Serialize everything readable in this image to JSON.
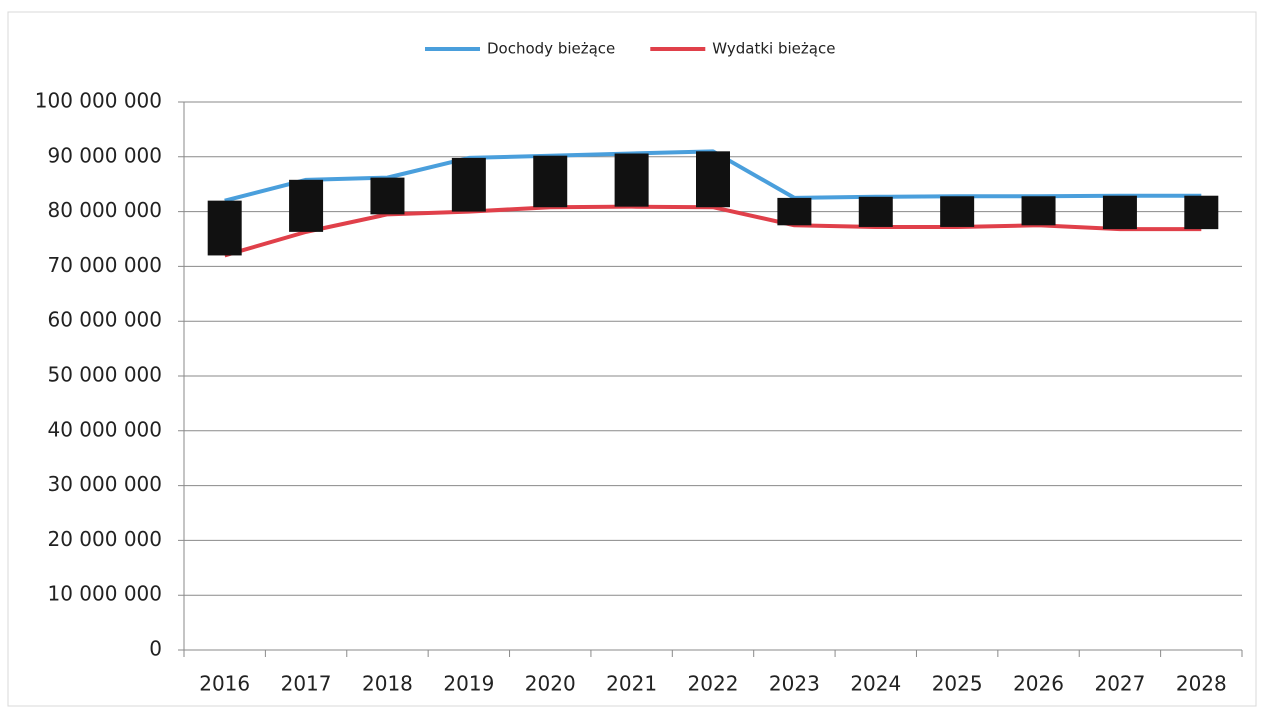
{
  "chart_data": {
    "type": "line",
    "categories": [
      "2016",
      "2017",
      "2018",
      "2019",
      "2020",
      "2021",
      "2022",
      "2023",
      "2024",
      "2025",
      "2026",
      "2027",
      "2028"
    ],
    "series": [
      {
        "name": "Dochody bieżące",
        "color": "#4a9fdc",
        "values": [
          82000000,
          85800000,
          86200000,
          89800000,
          90200000,
          90600000,
          91000000,
          82500000,
          82700000,
          82800000,
          82800000,
          82900000,
          82900000
        ]
      },
      {
        "name": "Wydatki bieżące",
        "color": "#e0404a",
        "values": [
          72000000,
          76300000,
          79500000,
          80000000,
          80800000,
          80900000,
          80800000,
          77500000,
          77200000,
          77200000,
          77500000,
          76800000,
          76800000
        ]
      }
    ],
    "up_down_bars": true,
    "bar_color": "#111111",
    "ylim": [
      0,
      100000000
    ],
    "yticks": [
      0,
      {
        "value": 10000000,
        "label": "10 000 000"
      },
      {
        "value": 20000000,
        "label": "20 000 000"
      },
      {
        "value": 30000000,
        "label": "30 000 000"
      },
      {
        "value": 40000000,
        "label": "40 000 000"
      },
      {
        "value": 50000000,
        "label": "50 000 000"
      },
      {
        "value": 60000000,
        "label": "60 000 000"
      },
      {
        "value": 70000000,
        "label": "70 000 000"
      },
      {
        "value": 80000000,
        "label": "80 000 000"
      },
      {
        "value": 90000000,
        "label": "90 000 000"
      },
      {
        "value": 100000000,
        "label": "100 000 000"
      }
    ],
    "grid": true,
    "legend": "top"
  }
}
